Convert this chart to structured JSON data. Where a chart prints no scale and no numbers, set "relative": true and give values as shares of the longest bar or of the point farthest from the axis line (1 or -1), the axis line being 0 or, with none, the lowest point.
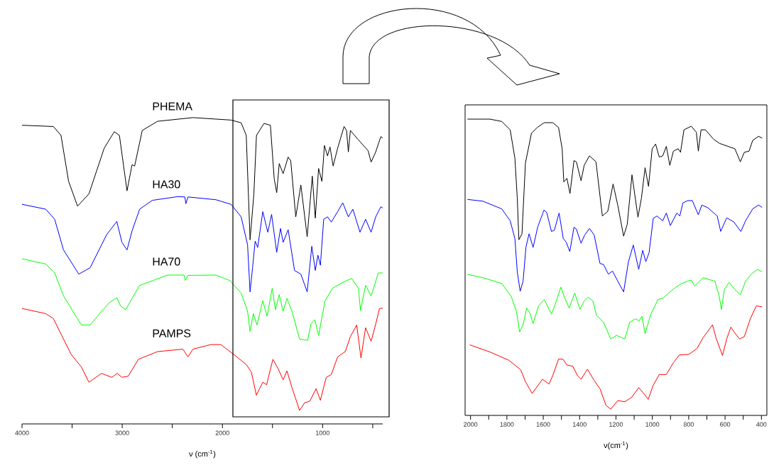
{
  "chart_data": [
    {
      "type": "line",
      "relative": true,
      "marker": "none",
      "tick_labels": "x",
      "xlabel": "ν (cm$^{-1}$)",
      "xlim": [
        4000,
        400
      ],
      "xticks": [
        4000,
        {
          "value": 3500,
          "label": null
        },
        3000,
        {
          "value": 2500,
          "label": null
        },
        2000,
        {
          "value": 1500,
          "label": null
        },
        1000,
        {
          "value": 500,
          "label": null
        }
      ],
      "series": [
        {
          "name": "PHEMA",
          "color": "#000000",
          "x": [
            4000,
            3687,
            3611,
            3535,
            3446,
            3332,
            3180,
            3079,
            3028,
            2952,
            2902,
            2876,
            2800,
            2648,
            2294,
            1914,
            1813,
            1762,
            1724,
            1686,
            1660,
            1585,
            1521,
            1483,
            1458,
            1433,
            1394,
            1344,
            1318,
            1268,
            1217,
            1154,
            1103,
            1073,
            1040,
            1007,
            982,
            951,
            926,
            895,
            850,
            786,
            761,
            743,
            723,
            647,
            546,
            516,
            470,
            419,
            400
          ],
          "values": [
            0.975,
            0.971,
            0.942,
            0.792,
            0.711,
            0.751,
            0.9,
            0.954,
            0.942,
            0.761,
            0.846,
            0.842,
            0.958,
            0.988,
            1.0,
            0.992,
            0.983,
            0.942,
            0.601,
            0.751,
            0.942,
            0.981,
            0.975,
            0.8,
            0.755,
            0.85,
            0.817,
            0.871,
            0.859,
            0.676,
            0.78,
            0.611,
            0.809,
            0.672,
            0.834,
            0.792,
            0.909,
            0.875,
            0.904,
            0.842,
            0.9,
            0.971,
            0.958,
            0.888,
            0.958,
            0.929,
            0.892,
            0.855,
            0.888,
            0.938,
            0.933
          ]
        },
        {
          "name": "HA30",
          "color": "#0000ff",
          "x": [
            4000,
            3763,
            3674,
            3586,
            3433,
            3320,
            3155,
            3054,
            3003,
            2952,
            2902,
            2826,
            2699,
            2446,
            2375,
            2365,
            2344,
            2066,
            1914,
            1813,
            1749,
            1724,
            1699,
            1673,
            1648,
            1597,
            1547,
            1509,
            1458,
            1420,
            1394,
            1344,
            1280,
            1217,
            1154,
            1108,
            1073,
            1047,
            1022,
            989,
            951,
            913,
            850,
            799,
            743,
            698,
            627,
            571,
            516,
            470,
            419,
            400
          ],
          "values": [
            0.717,
            0.701,
            0.668,
            0.568,
            0.489,
            0.51,
            0.618,
            0.661,
            0.593,
            0.568,
            0.63,
            0.701,
            0.73,
            0.742,
            0.741,
            0.719,
            0.741,
            0.732,
            0.717,
            0.676,
            0.585,
            0.431,
            0.51,
            0.597,
            0.576,
            0.693,
            0.626,
            0.684,
            0.56,
            0.638,
            0.593,
            0.634,
            0.501,
            0.489,
            0.431,
            0.58,
            0.501,
            0.551,
            0.518,
            0.668,
            0.676,
            0.659,
            0.693,
            0.722,
            0.676,
            0.701,
            0.626,
            0.668,
            0.626,
            0.676,
            0.709,
            0.705
          ]
        },
        {
          "name": "HA70",
          "color": "#00ff00",
          "x": [
            4000,
            3763,
            3674,
            3586,
            3408,
            3320,
            3206,
            3130,
            3054,
            3016,
            2965,
            2902,
            2826,
            2547,
            2382,
            2370,
            2344,
            2066,
            1926,
            1813,
            1749,
            1724,
            1691,
            1655,
            1597,
            1554,
            1503,
            1470,
            1433,
            1394,
            1356,
            1306,
            1230,
            1149,
            1116,
            1078,
            1040,
            976,
            901,
            812,
            710,
            642,
            622,
            571,
            516,
            444,
            400
          ],
          "values": [
            0.539,
            0.522,
            0.493,
            0.418,
            0.323,
            0.323,
            0.368,
            0.395,
            0.412,
            0.385,
            0.373,
            0.41,
            0.452,
            0.486,
            0.486,
            0.468,
            0.485,
            0.486,
            0.468,
            0.427,
            0.368,
            0.302,
            0.36,
            0.323,
            0.402,
            0.352,
            0.443,
            0.373,
            0.422,
            0.368,
            0.41,
            0.368,
            0.277,
            0.273,
            0.327,
            0.34,
            0.289,
            0.402,
            0.443,
            0.46,
            0.475,
            0.443,
            0.37,
            0.452,
            0.418,
            0.493,
            0.493
          ]
        },
        {
          "name": "PAMPS",
          "color": "#ff0000",
          "x": [
            4000,
            3763,
            3687,
            3510,
            3408,
            3332,
            3206,
            3104,
            3049,
            3003,
            2940,
            2838,
            2648,
            2395,
            2344,
            2294,
            2116,
            2015,
            1888,
            1762,
            1711,
            1661,
            1597,
            1559,
            1496,
            1445,
            1394,
            1356,
            1306,
            1230,
            1179,
            1128,
            1065,
            1022,
            964,
            913,
            850,
            774,
            723,
            660,
            617,
            571,
            516,
            475,
            432,
            400
          ],
          "values": [
            0.377,
            0.36,
            0.344,
            0.227,
            0.186,
            0.136,
            0.165,
            0.152,
            0.165,
            0.152,
            0.156,
            0.211,
            0.236,
            0.244,
            0.219,
            0.244,
            0.259,
            0.259,
            0.227,
            0.194,
            0.169,
            0.094,
            0.136,
            0.128,
            0.211,
            0.181,
            0.144,
            0.173,
            0.119,
            0.044,
            0.069,
            0.074,
            0.115,
            0.077,
            0.152,
            0.161,
            0.219,
            0.236,
            0.285,
            0.323,
            0.215,
            0.314,
            0.27,
            0.319,
            0.377,
            0.378
          ]
        }
      ]
    },
    {
      "type": "line",
      "relative": true,
      "marker": "none",
      "tick_labels": "x",
      "xlabel": "ν(cm$^{-1}$)",
      "xlim": [
        2030,
        370
      ],
      "xticks": [
        2000,
        {
          "value": 1900,
          "label": null
        },
        1800,
        {
          "value": 1700,
          "label": null
        },
        1600,
        {
          "value": 1500,
          "label": null
        },
        1400,
        {
          "value": 1300,
          "label": null
        },
        1200,
        {
          "value": 1100,
          "label": null
        },
        1000,
        {
          "value": 900,
          "label": null
        },
        800,
        {
          "value": 700,
          "label": null
        },
        600,
        {
          "value": 500,
          "label": null
        },
        400
      ],
      "series": [
        {
          "color": "#000000",
          "x": [
            2017,
            1893,
            1828,
            1782,
            1756,
            1743,
            1734,
            1717,
            1698,
            1665,
            1633,
            1594,
            1548,
            1516,
            1496,
            1487,
            1470,
            1453,
            1431,
            1418,
            1392,
            1375,
            1346,
            1310,
            1275,
            1245,
            1216,
            1190,
            1158,
            1138,
            1112,
            1079,
            1060,
            1040,
            1021,
            1001,
            982,
            962,
            943,
            923,
            904,
            884,
            858,
            845,
            826,
            786,
            758,
            747,
            732,
            708,
            663,
            630,
            546,
            516,
            494,
            468,
            448,
            416,
            396
          ],
          "values": [
            1.0,
            1.0,
            0.992,
            0.964,
            0.868,
            0.733,
            0.593,
            0.613,
            0.852,
            0.952,
            0.972,
            0.988,
            0.988,
            0.972,
            0.9,
            0.788,
            0.8,
            0.749,
            0.86,
            0.856,
            0.792,
            0.844,
            0.876,
            0.856,
            0.673,
            0.689,
            0.781,
            0.709,
            0.605,
            0.645,
            0.812,
            0.669,
            0.733,
            0.836,
            0.773,
            0.9,
            0.916,
            0.872,
            0.876,
            0.908,
            0.844,
            0.892,
            0.9,
            0.888,
            0.964,
            0.976,
            0.956,
            0.892,
            0.964,
            0.964,
            0.932,
            0.918,
            0.9,
            0.856,
            0.888,
            0.892,
            0.928,
            0.942,
            0.936
          ]
        },
        {
          "color": "#0000ff",
          "x": [
            2017,
            1932,
            1828,
            1782,
            1756,
            1743,
            1727,
            1711,
            1695,
            1678,
            1656,
            1630,
            1596,
            1581,
            1555,
            1539,
            1513,
            1490,
            1474,
            1454,
            1431,
            1418,
            1392,
            1372,
            1346,
            1320,
            1288,
            1268,
            1242,
            1219,
            1190,
            1158,
            1132,
            1105,
            1075,
            1053,
            1036,
            1018,
            995,
            975,
            943,
            923,
            901,
            865,
            849,
            832,
            806,
            780,
            747,
            728,
            695,
            643,
            624,
            591,
            552,
            513,
            487,
            448,
            416,
            396
          ],
          "values": [
            0.729,
            0.723,
            0.697,
            0.657,
            0.597,
            0.485,
            0.419,
            0.453,
            0.569,
            0.613,
            0.567,
            0.637,
            0.693,
            0.685,
            0.621,
            0.625,
            0.683,
            0.597,
            0.585,
            0.553,
            0.635,
            0.629,
            0.581,
            0.609,
            0.631,
            0.609,
            0.513,
            0.509,
            0.477,
            0.487,
            0.453,
            0.417,
            0.517,
            0.575,
            0.493,
            0.557,
            0.519,
            0.549,
            0.665,
            0.673,
            0.657,
            0.683,
            0.641,
            0.683,
            0.673,
            0.717,
            0.725,
            0.725,
            0.677,
            0.71,
            0.701,
            0.673,
            0.621,
            0.667,
            0.653,
            0.621,
            0.657,
            0.697,
            0.71,
            0.702
          ]
        },
        {
          "color": "#00ff00",
          "x": [
            2017,
            1932,
            1828,
            1776,
            1747,
            1730,
            1711,
            1691,
            1674,
            1656,
            1626,
            1594,
            1555,
            1535,
            1503,
            1483,
            1457,
            1427,
            1398,
            1375,
            1353,
            1327,
            1307,
            1268,
            1229,
            1197,
            1151,
            1125,
            1092,
            1073,
            1057,
            1040,
            1008,
            969,
            943,
            910,
            871,
            839,
            806,
            786,
            767,
            721,
            656,
            633,
            620,
            604,
            578,
            546,
            516,
            487,
            455,
            422,
            396
          ],
          "values": [
            0.476,
            0.465,
            0.445,
            0.401,
            0.35,
            0.282,
            0.306,
            0.362,
            0.346,
            0.31,
            0.37,
            0.391,
            0.342,
            0.374,
            0.433,
            0.398,
            0.362,
            0.413,
            0.358,
            0.386,
            0.399,
            0.386,
            0.338,
            0.314,
            0.258,
            0.27,
            0.258,
            0.314,
            0.326,
            0.319,
            0.335,
            0.276,
            0.342,
            0.391,
            0.395,
            0.413,
            0.433,
            0.445,
            0.453,
            0.457,
            0.437,
            0.465,
            0.453,
            0.405,
            0.358,
            0.425,
            0.449,
            0.425,
            0.407,
            0.453,
            0.477,
            0.493,
            0.485
          ]
        },
        {
          "color": "#ff0000",
          "x": [
            2004,
            1893,
            1789,
            1724,
            1698,
            1661,
            1633,
            1604,
            1568,
            1548,
            1516,
            1492,
            1470,
            1438,
            1411,
            1392,
            1357,
            1320,
            1288,
            1255,
            1229,
            1190,
            1151,
            1112,
            1075,
            1047,
            1023,
            995,
            962,
            923,
            884,
            852,
            799,
            754,
            721,
            669,
            650,
            614,
            591,
            568,
            546,
            520,
            494,
            461,
            428,
            396
          ],
          "values": [
            0.238,
            0.214,
            0.186,
            0.154,
            0.114,
            0.074,
            0.098,
            0.122,
            0.106,
            0.134,
            0.19,
            0.19,
            0.17,
            0.166,
            0.134,
            0.122,
            0.156,
            0.118,
            0.09,
            0.034,
            0.021,
            0.05,
            0.046,
            0.062,
            0.094,
            0.074,
            0.054,
            0.102,
            0.138,
            0.138,
            0.178,
            0.204,
            0.206,
            0.226,
            0.262,
            0.306,
            0.262,
            0.202,
            0.258,
            0.298,
            0.278,
            0.258,
            0.266,
            0.326,
            0.37,
            0.366
          ]
        }
      ]
    }
  ]
}
